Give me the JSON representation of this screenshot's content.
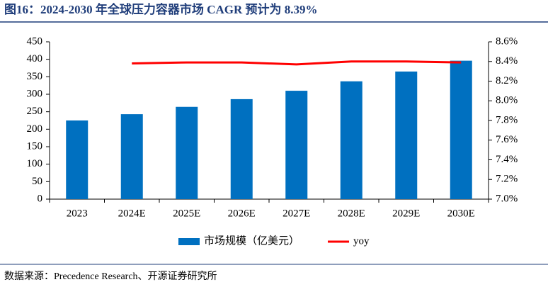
{
  "chart_data": {
    "type": "bar-line",
    "title": "图16：2024-2030 年全球压力容器市场 CAGR 预计为 8.39%",
    "source": "数据来源：Precedence Research、开源证券研究所",
    "categories": [
      "2023",
      "2024E",
      "2025E",
      "2026E",
      "2027E",
      "2028E",
      "2029E",
      "2030E"
    ],
    "series": [
      {
        "name": "市场规模（亿美元）",
        "type": "bar",
        "color": "#0070c0",
        "values": [
          225,
          243,
          264,
          286,
          310,
          337,
          365,
          396
        ]
      },
      {
        "name": "yoy",
        "type": "line",
        "axis": "y2",
        "color": "#ff0000",
        "values": [
          null,
          8.38,
          8.39,
          8.39,
          8.37,
          8.4,
          8.4,
          8.39
        ]
      }
    ],
    "ylim": [
      0,
      450
    ],
    "yticks": [
      0,
      50,
      100,
      150,
      200,
      250,
      300,
      350,
      400,
      450
    ],
    "y2lim": [
      7.0,
      8.6
    ],
    "y2ticks": [
      {
        "value": 7.0,
        "label": "7.0%"
      },
      {
        "value": 7.2,
        "label": "7.2%"
      },
      {
        "value": 7.4,
        "label": "7.4%"
      },
      {
        "value": 7.6,
        "label": "7.6%"
      },
      {
        "value": 7.8,
        "label": "7.8%"
      },
      {
        "value": 8.0,
        "label": "8.0%"
      },
      {
        "value": 8.2,
        "label": "8.2%"
      },
      {
        "value": 8.4,
        "label": "8.4%"
      },
      {
        "value": 8.6,
        "label": "8.6%"
      }
    ],
    "legend": "bottom"
  }
}
